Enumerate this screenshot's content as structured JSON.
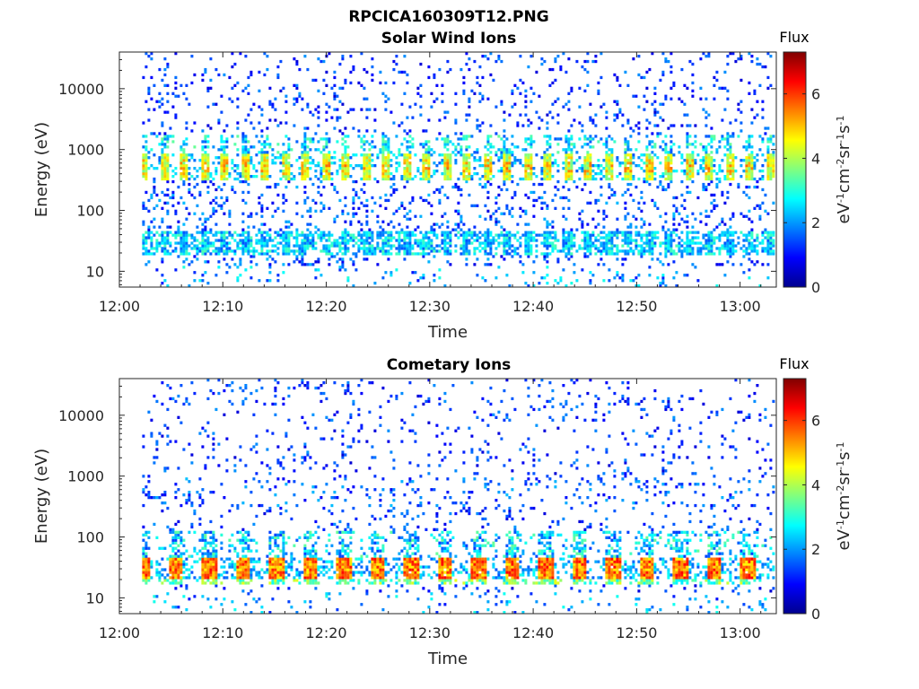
{
  "figure_title": "RPCICA160309T12.PNG",
  "chart_data": [
    {
      "type": "heatmap",
      "title": "Solar Wind Ions",
      "xlabel": "Time",
      "ylabel": "Energy (eV)",
      "x_ticks": [
        "12:00",
        "12:10",
        "12:20",
        "12:30",
        "12:40",
        "12:50",
        "13:00"
      ],
      "x_tick_minutes": [
        0,
        10,
        20,
        30,
        40,
        50,
        60
      ],
      "xlim_minutes": [
        0,
        63.5
      ],
      "data_start_minute": 2.2,
      "y_ticks": [
        "10",
        "100",
        "1000",
        "10000"
      ],
      "y_tick_values": [
        10,
        100,
        1000,
        10000
      ],
      "ylim": [
        5.5,
        40000
      ],
      "y_scale": "log",
      "colorbar": {
        "title": "Flux",
        "label": "eV-1cm-2sr-1s-1",
        "ticks": [
          "0",
          "2",
          "4",
          "6"
        ],
        "range": [
          0,
          7.3
        ]
      },
      "features": [
        {
          "name": "solar wind bursts",
          "energy_ev": [
            300,
            900
          ],
          "flux_peak": 5.5
        },
        {
          "name": "low-energy band",
          "energy_ev": [
            18,
            45
          ],
          "flux_peak": 3.0
        }
      ]
    },
    {
      "type": "heatmap",
      "title": "Cometary Ions",
      "xlabel": "Time",
      "ylabel": "Energy (eV)",
      "x_ticks": [
        "12:00",
        "12:10",
        "12:20",
        "12:30",
        "12:40",
        "12:50",
        "13:00"
      ],
      "x_tick_minutes": [
        0,
        10,
        20,
        30,
        40,
        50,
        60
      ],
      "xlim_minutes": [
        0,
        63.5
      ],
      "data_start_minute": 2.2,
      "y_ticks": [
        "10",
        "100",
        "1000",
        "10000"
      ],
      "y_tick_values": [
        10,
        100,
        1000,
        10000
      ],
      "ylim": [
        5.5,
        40000
      ],
      "y_scale": "log",
      "colorbar": {
        "title": "Flux",
        "label": "eV-1cm-2sr-1s-1",
        "ticks": [
          "0",
          "2",
          "4",
          "6"
        ],
        "range": [
          0,
          7.3
        ]
      },
      "features": [
        {
          "name": "cometary ion bursts",
          "energy_ev": [
            20,
            45
          ],
          "flux_peak": 6.3
        }
      ]
    }
  ]
}
